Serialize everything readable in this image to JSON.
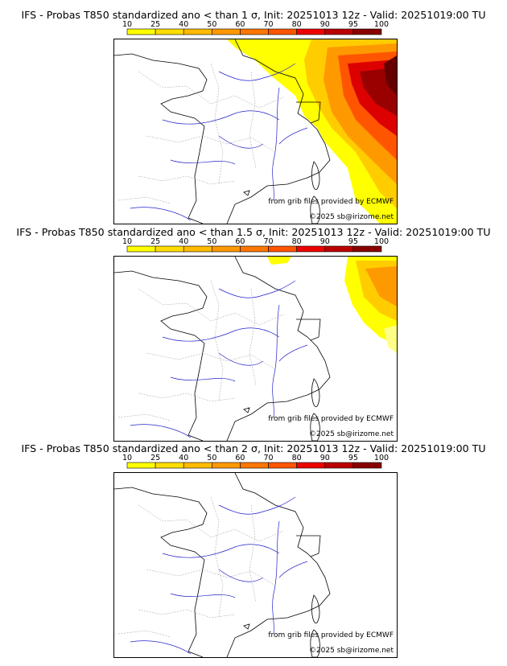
{
  "scale": {
    "ticks": [
      "10",
      "25",
      "40",
      "50",
      "60",
      "70",
      "80",
      "90",
      "95",
      "100"
    ],
    "colors": [
      "#ffff00",
      "#ffdd00",
      "#ffbb00",
      "#ff9900",
      "#ff7700",
      "#ff5500",
      "#ee0000",
      "#bb0000",
      "#880000"
    ]
  },
  "panels": [
    {
      "title": "IFS - Probas T850  standardized ano < than 1 σ, Init: 20251013 12z - Valid: 20251019:00 TU",
      "credit_source": "from grib files provided by ECMWF",
      "credit_copyright": "©2025 sb@irizome.net"
    },
    {
      "title": "IFS - Probas T850  standardized ano < than 1.5 σ, Init: 20251013 12z - Valid: 20251019:00 TU",
      "credit_source": "from grib files provided by ECMWF",
      "credit_copyright": "©2025 sb@irizome.net"
    },
    {
      "title": "IFS - Probas T850  standardized ano < than 2 σ, Init: 20251013 12z - Valid: 20251019:00 TU",
      "credit_source": "from grib files provided by ECMWF",
      "credit_copyright": "©2025 sb@irizome.net"
    }
  ]
}
